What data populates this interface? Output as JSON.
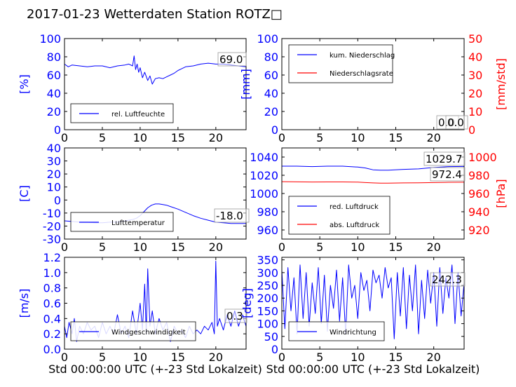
{
  "title": "2017-01-23 Wetterdaten Station ROTZ□",
  "xlabel": "Std 00:00:00 UTC (+-23 Std Lokalzeit)",
  "colors": {
    "left_axis": "#0000ff",
    "right_axis": "#ff0000",
    "line_blue": "#0000ff",
    "line_red": "#ff0000"
  },
  "chart_data": [
    {
      "type": "line",
      "panel": "top-left",
      "ylabel": "[%]",
      "xlim": [
        0,
        24
      ],
      "ylim": [
        0,
        100
      ],
      "yticks": [
        0,
        20,
        40,
        60,
        80,
        100
      ],
      "xticks": [
        0,
        5,
        10,
        15,
        20
      ],
      "legend": {
        "placement": "lower-left",
        "entries": [
          "rel. Luftfeuchte"
        ]
      },
      "annotations": [
        "69.0"
      ],
      "series": [
        {
          "name": "rel. Luftfeuchte",
          "color": "#0000ff",
          "x": [
            0,
            0.5,
            1,
            2,
            3,
            4,
            5,
            6,
            7,
            8,
            8.5,
            9,
            9.2,
            9.4,
            9.6,
            9.8,
            10,
            10.3,
            10.6,
            11,
            11.3,
            11.6,
            12,
            12.5,
            13,
            13.5,
            14,
            14.5,
            15,
            15.5,
            16,
            17,
            18,
            19,
            20,
            21,
            22,
            23,
            24
          ],
          "y": [
            72,
            69,
            71,
            70,
            69,
            70,
            70,
            68,
            70,
            71,
            72,
            70,
            81,
            66,
            72,
            63,
            68,
            57,
            63,
            54,
            59,
            50,
            56,
            57,
            56,
            58,
            60,
            62,
            65,
            67,
            69,
            70,
            72,
            73,
            72,
            72,
            71,
            70,
            69
          ]
        }
      ]
    },
    {
      "type": "line",
      "panel": "top-right",
      "ylabel": "[mm]",
      "ylabel_right": "[mm/std]",
      "xlim": [
        0,
        24
      ],
      "ylim": [
        0,
        100
      ],
      "ylim_right": [
        0,
        50
      ],
      "yticks": [
        0,
        20,
        40,
        60,
        80,
        100
      ],
      "yticks_right": [
        0,
        10,
        20,
        30,
        40,
        50
      ],
      "xticks": [
        0,
        5,
        10,
        15,
        20
      ],
      "legend": {
        "placement": "upper-left",
        "entries": [
          "kum. Niederschlag",
          "Niederschlagsrate"
        ]
      },
      "annotations": [
        "0.0",
        "0.0"
      ],
      "series": [
        {
          "name": "kum. Niederschlag",
          "color": "#0000ff",
          "x": [
            0,
            24
          ],
          "y": [
            0,
            0
          ]
        },
        {
          "name": "Niederschlagsrate",
          "color": "#ff0000",
          "axis": "right",
          "x": [
            0,
            24
          ],
          "y": [
            0,
            0
          ]
        }
      ]
    },
    {
      "type": "line",
      "panel": "middle-left",
      "ylabel": "[C]",
      "xlim": [
        0,
        24
      ],
      "ylim": [
        -30,
        40
      ],
      "yticks": [
        -30,
        -20,
        -10,
        0,
        10,
        20,
        30,
        40
      ],
      "xticks": [
        0,
        5,
        10,
        15,
        20
      ],
      "legend": {
        "placement": "lower-left",
        "entries": [
          "Lufttemperatur"
        ]
      },
      "annotations": [
        "-18.0"
      ],
      "series": [
        {
          "name": "Lufttemperatur",
          "color": "#0000ff",
          "x": [
            0,
            1,
            2,
            3,
            4,
            5,
            6,
            7,
            8,
            9,
            9.5,
            10,
            10.5,
            11,
            11.5,
            12,
            12.5,
            13,
            13.5,
            14,
            15,
            16,
            17,
            18,
            19,
            20,
            21,
            22,
            23,
            24
          ],
          "y": [
            -16,
            -16.5,
            -17,
            -17,
            -17.5,
            -17.5,
            -17,
            -17,
            -16,
            -15,
            -14,
            -12,
            -9,
            -6,
            -4,
            -3,
            -3,
            -3.5,
            -4,
            -5,
            -7,
            -9.5,
            -12,
            -14,
            -15.5,
            -17,
            -17.5,
            -18,
            -18,
            -18
          ]
        }
      ]
    },
    {
      "type": "line",
      "panel": "middle-right",
      "ylabel_right": "[hPa]",
      "xlim": [
        0,
        24
      ],
      "ylim": [
        950,
        1050
      ],
      "ylim_right": [
        910,
        1010
      ],
      "yticks": [
        960,
        980,
        1000,
        1020,
        1040
      ],
      "yticks_right": [
        920,
        940,
        960,
        980,
        1000
      ],
      "xticks": [
        0,
        5,
        10,
        15,
        20
      ],
      "legend": {
        "placement": "lower-left",
        "entries": [
          "red. Luftdruck",
          "abs. Luftdruck"
        ]
      },
      "annotations": [
        "1029.7",
        "972.4"
      ],
      "series": [
        {
          "name": "red. Luftdruck",
          "color": "#0000ff",
          "x": [
            0,
            2,
            4,
            6,
            8,
            10,
            11,
            12,
            13,
            14,
            16,
            18,
            20,
            22,
            24
          ],
          "y": [
            1030,
            1030,
            1029.5,
            1030,
            1030,
            1029,
            1028,
            1026,
            1025.5,
            1025.5,
            1026.5,
            1027,
            1028.5,
            1029.5,
            1029.7
          ]
        },
        {
          "name": "abs. Luftdruck",
          "color": "#ff0000",
          "axis": "right",
          "x": [
            0,
            2,
            4,
            6,
            8,
            10,
            11,
            12,
            13,
            14,
            16,
            18,
            20,
            22,
            24
          ],
          "y": [
            973,
            972.8,
            972.6,
            972.7,
            972.7,
            972.5,
            972,
            971.6,
            971.4,
            971.4,
            971.6,
            971.8,
            972,
            972.3,
            972.4
          ]
        }
      ]
    },
    {
      "type": "line",
      "panel": "bottom-left",
      "ylabel": "[m/s]",
      "xlim": [
        0,
        24
      ],
      "ylim": [
        0,
        1.2
      ],
      "yticks": [
        0.0,
        0.2,
        0.4,
        0.6,
        0.8,
        1.0,
        1.2
      ],
      "xticks": [
        0,
        5,
        10,
        15,
        20
      ],
      "legend": {
        "placement": "lower-left",
        "entries": [
          "Windgeschwindigkeit"
        ]
      },
      "annotations": [
        "0.3"
      ],
      "series": [
        {
          "name": "Windgeschwindigkeit",
          "color": "#0000ff",
          "x": [
            0,
            0.3,
            0.6,
            1,
            1.3,
            1.6,
            2,
            2.5,
            3,
            3.5,
            4,
            4.5,
            5,
            5.5,
            6,
            6.5,
            7,
            7.5,
            8,
            8.5,
            9,
            9.5,
            10,
            10.3,
            10.6,
            10.8,
            11,
            11.3,
            11.6,
            12,
            12.5,
            13,
            13.5,
            14,
            14.5,
            15,
            15.5,
            16,
            16.5,
            17,
            17.5,
            18,
            18.5,
            19,
            19.5,
            19.8,
            20,
            20.2,
            20.5,
            21,
            21.5,
            22,
            22.5,
            23,
            23.5,
            24
          ],
          "y": [
            0.3,
            0.15,
            0.35,
            0.2,
            0.4,
            0.1,
            0.3,
            0.2,
            0.35,
            0.25,
            0.3,
            0.15,
            0.35,
            0.2,
            0.3,
            0.2,
            0.45,
            0.2,
            0.3,
            0.15,
            0.5,
            0.2,
            0.6,
            0.25,
            0.85,
            0.2,
            1.05,
            0.3,
            0.5,
            0.2,
            0.4,
            0.25,
            0.35,
            0.1,
            0.3,
            0.2,
            0.25,
            0.15,
            0.3,
            0.2,
            0.25,
            0.2,
            0.3,
            0.25,
            0.35,
            0.2,
            1.15,
            0.3,
            0.4,
            0.25,
            0.45,
            0.3,
            0.5,
            0.3,
            0.45,
            0.3
          ]
        }
      ]
    },
    {
      "type": "line",
      "panel": "bottom-right",
      "ylabel": "[deg]",
      "xlim": [
        0,
        24
      ],
      "ylim": [
        0,
        360
      ],
      "yticks": [
        0,
        50,
        100,
        150,
        200,
        250,
        300,
        350
      ],
      "xticks": [
        0,
        5,
        10,
        15,
        20
      ],
      "legend": {
        "placement": "lower-left",
        "entries": [
          "Windrichtung"
        ]
      },
      "annotations": [
        "242.3"
      ],
      "series": [
        {
          "name": "Windrichtung",
          "color": "#0000ff",
          "x": [
            0,
            0.4,
            0.8,
            1.2,
            1.6,
            2,
            2.4,
            2.8,
            3.2,
            3.6,
            4,
            4.4,
            4.8,
            5.2,
            5.6,
            6,
            6.4,
            6.8,
            7.2,
            7.6,
            8,
            8.4,
            8.8,
            9.2,
            9.6,
            10,
            10.4,
            10.8,
            11.2,
            11.6,
            12,
            12.4,
            12.8,
            13.2,
            13.6,
            14,
            14.4,
            14.8,
            15.2,
            15.6,
            16,
            16.4,
            16.8,
            17.2,
            17.6,
            18,
            18.4,
            18.8,
            19.2,
            19.6,
            20,
            20.4,
            20.8,
            21.2,
            21.6,
            22,
            22.4,
            22.8,
            23.2,
            23.6,
            24
          ],
          "y": [
            310,
            80,
            320,
            150,
            280,
            60,
            330,
            120,
            300,
            90,
            260,
            140,
            320,
            100,
            290,
            70,
            250,
            160,
            310,
            110,
            280,
            60,
            330,
            200,
            250,
            120,
            300,
            230,
            270,
            150,
            310,
            260,
            290,
            200,
            320,
            240,
            280,
            40,
            300,
            130,
            320,
            80,
            290,
            150,
            330,
            60,
            270,
            120,
            310,
            180,
            300,
            90,
            320,
            140,
            280,
            200,
            330,
            100,
            300,
            130,
            260
          ]
        }
      ]
    }
  ]
}
